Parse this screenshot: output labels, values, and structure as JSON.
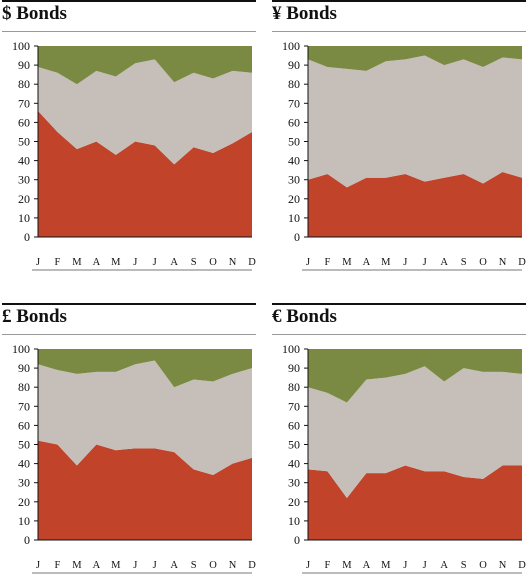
{
  "colors": {
    "bottom": "#c0432a",
    "middle": "#c6bfb9",
    "top": "#7a8a42",
    "axis": "#111111"
  },
  "chart_data": [
    {
      "type": "area",
      "title": "$ Bonds",
      "stacked": true,
      "categories": [
        "J",
        "F",
        "M",
        "A",
        "M",
        "J",
        "J",
        "A",
        "S",
        "O",
        "N",
        "D"
      ],
      "yticks": [
        0,
        10,
        20,
        30,
        40,
        50,
        60,
        70,
        80,
        90,
        100
      ],
      "ylim": [
        0,
        100
      ],
      "grid": false,
      "series": [
        {
          "values": [
            66,
            55,
            46,
            50,
            43,
            50,
            48,
            38,
            47,
            44,
            49,
            55
          ]
        },
        {
          "values": [
            23,
            31,
            34,
            37,
            41,
            41,
            45,
            43,
            39,
            39,
            38,
            31
          ]
        },
        {
          "values": [
            11,
            14,
            20,
            13,
            16,
            9,
            7,
            19,
            14,
            17,
            13,
            14
          ]
        }
      ]
    },
    {
      "type": "area",
      "title": "¥ Bonds",
      "stacked": true,
      "categories": [
        "J",
        "F",
        "M",
        "A",
        "M",
        "J",
        "J",
        "A",
        "S",
        "O",
        "N",
        "D"
      ],
      "yticks": [
        0,
        10,
        20,
        30,
        40,
        50,
        60,
        70,
        80,
        90,
        100
      ],
      "ylim": [
        0,
        100
      ],
      "grid": false,
      "series": [
        {
          "values": [
            30,
            33,
            26,
            31,
            31,
            33,
            29,
            31,
            33,
            28,
            34,
            31
          ]
        },
        {
          "values": [
            63,
            56,
            62,
            56,
            61,
            60,
            66,
            59,
            60,
            61,
            60,
            62
          ]
        },
        {
          "values": [
            7,
            11,
            12,
            13,
            8,
            7,
            5,
            10,
            7,
            11,
            6,
            7
          ]
        }
      ]
    },
    {
      "type": "area",
      "title": "£ Bonds",
      "stacked": true,
      "categories": [
        "J",
        "F",
        "M",
        "A",
        "M",
        "J",
        "J",
        "A",
        "S",
        "O",
        "N",
        "D"
      ],
      "yticks": [
        0,
        10,
        20,
        30,
        40,
        50,
        60,
        70,
        80,
        90,
        100
      ],
      "ylim": [
        0,
        100
      ],
      "grid": false,
      "series": [
        {
          "values": [
            52,
            50,
            39,
            50,
            47,
            48,
            48,
            46,
            37,
            34,
            40,
            43
          ]
        },
        {
          "values": [
            40,
            39,
            48,
            38,
            41,
            44,
            46,
            34,
            47,
            49,
            47,
            47
          ]
        },
        {
          "values": [
            8,
            11,
            13,
            12,
            12,
            8,
            6,
            20,
            16,
            17,
            13,
            10
          ]
        }
      ]
    },
    {
      "type": "area",
      "title": "€ Bonds",
      "stacked": true,
      "categories": [
        "J",
        "F",
        "M",
        "A",
        "M",
        "J",
        "J",
        "A",
        "S",
        "O",
        "N",
        "D"
      ],
      "yticks": [
        0,
        10,
        20,
        30,
        40,
        50,
        60,
        70,
        80,
        90,
        100
      ],
      "ylim": [
        0,
        100
      ],
      "grid": false,
      "series": [
        {
          "values": [
            37,
            36,
            22,
            35,
            35,
            39,
            36,
            36,
            33,
            32,
            39,
            39
          ]
        },
        {
          "values": [
            43,
            41,
            50,
            49,
            50,
            48,
            55,
            47,
            57,
            56,
            49,
            48
          ]
        },
        {
          "values": [
            20,
            23,
            28,
            16,
            15,
            13,
            9,
            17,
            10,
            12,
            12,
            13
          ]
        }
      ]
    }
  ]
}
